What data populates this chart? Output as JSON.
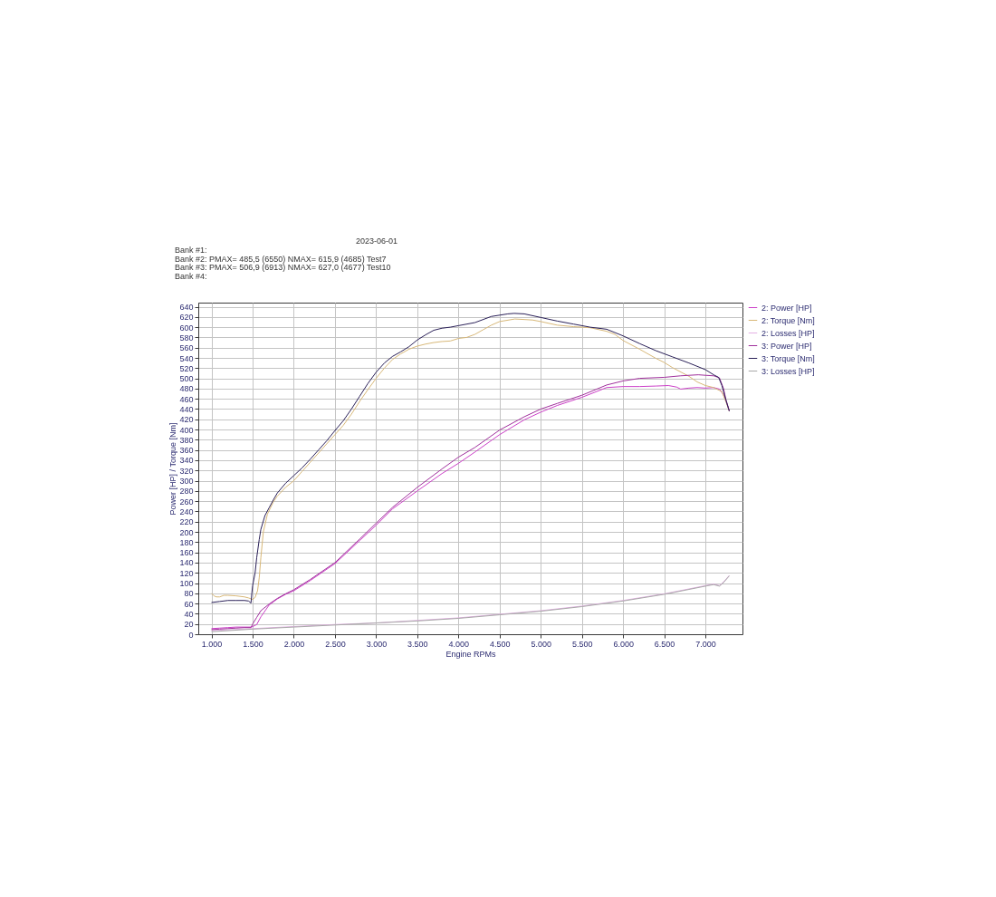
{
  "chart_data": {
    "type": "line",
    "title": "2023-06-01",
    "annotations": [
      "Bank #1:",
      "Bank #2: PMAX= 485,5 (6550)   NMAX= 615,9 (4685)   Test7",
      "Bank #3: PMAX= 506,9 (6913)   NMAX= 627,0 (4677)   Test10",
      "Bank #4:"
    ],
    "xlabel": "Engine RPMs",
    "ylabel": "Power [HP] / Torque [Nm]",
    "xlim": [
      840,
      7450
    ],
    "ylim": [
      0,
      648
    ],
    "xticks": [
      {
        "value": 1000,
        "label": "1.000"
      },
      {
        "value": 1500,
        "label": "1.500"
      },
      {
        "value": 2000,
        "label": "2.000"
      },
      {
        "value": 2500,
        "label": "2.500"
      },
      {
        "value": 3000,
        "label": "3.000"
      },
      {
        "value": 3500,
        "label": "3.500"
      },
      {
        "value": 4000,
        "label": "4.000"
      },
      {
        "value": 4500,
        "label": "4.500"
      },
      {
        "value": 5000,
        "label": "5.000"
      },
      {
        "value": 5500,
        "label": "5.500"
      },
      {
        "value": 6000,
        "label": "6.000"
      },
      {
        "value": 6500,
        "label": "6.500"
      },
      {
        "value": 7000,
        "label": "7.000"
      }
    ],
    "yticks": [
      0,
      20,
      40,
      60,
      80,
      100,
      120,
      140,
      160,
      180,
      200,
      220,
      240,
      260,
      280,
      300,
      320,
      340,
      360,
      380,
      400,
      420,
      440,
      460,
      480,
      500,
      520,
      540,
      560,
      580,
      600,
      620,
      640
    ],
    "grid": true,
    "legend": "right",
    "marker": "none",
    "line_style": "solid",
    "series": [
      {
        "name": "2: Power [HP]",
        "color": "#cc40c8",
        "x": [
          1000,
          1100,
          1200,
          1300,
          1400,
          1480,
          1500,
          1550,
          1600,
          1700,
          1800,
          1900,
          2000,
          2200,
          2500,
          2800,
          3000,
          3200,
          3500,
          3800,
          4000,
          4200,
          4500,
          4800,
          5000,
          5200,
          5500,
          5800,
          6000,
          6200,
          6400,
          6550,
          6650,
          6700,
          6800,
          6900,
          7000,
          7100,
          7170,
          7220,
          7260,
          7290
        ],
        "values": [
          11,
          12,
          13,
          14,
          14,
          14,
          15,
          19,
          34,
          57,
          69,
          78,
          85,
          105,
          138,
          183,
          213,
          245,
          280,
          314,
          334,
          356,
          390,
          419,
          434,
          447,
          463,
          482,
          484,
          484,
          485,
          486,
          483,
          479,
          481,
          482,
          481,
          482,
          479,
          468,
          451,
          436
        ]
      },
      {
        "name": "2: Torque [Nm]",
        "color": "#d8b878",
        "x": [
          1000,
          1030,
          1060,
          1100,
          1150,
          1200,
          1300,
          1400,
          1450,
          1500,
          1530,
          1560,
          1580,
          1600,
          1630,
          1680,
          1750,
          1800,
          1900,
          2000,
          2100,
          2200,
          2300,
          2400,
          2500,
          2600,
          2700,
          2800,
          2900,
          3000,
          3100,
          3200,
          3300,
          3400,
          3500,
          3600,
          3700,
          3800,
          3900,
          4000,
          4100,
          4200,
          4300,
          4400,
          4500,
          4685,
          4800,
          4900,
          5000,
          5200,
          5400,
          5600,
          5800,
          5900,
          6000,
          6200,
          6400,
          6500,
          6600,
          6800,
          6900,
          7000,
          7100,
          7200,
          7250,
          7290
        ],
        "values": [
          80,
          75,
          73,
          73,
          76,
          76,
          75,
          73,
          71,
          68,
          72,
          85,
          110,
          150,
          200,
          235,
          258,
          270,
          287,
          300,
          318,
          336,
          354,
          372,
          390,
          408,
          430,
          455,
          478,
          500,
          520,
          537,
          548,
          557,
          563,
          567,
          570,
          572,
          573,
          578,
          580,
          586,
          595,
          604,
          611,
          616,
          615,
          614,
          611,
          604,
          601,
          599,
          592,
          586,
          574,
          557,
          539,
          531,
          521,
          504,
          493,
          486,
          482,
          474,
          454,
          436
        ]
      },
      {
        "name": "2: Losses [HP]",
        "color": "#e4b0e4",
        "x": [
          1000,
          1500,
          2000,
          2500,
          3000,
          3500,
          4000,
          4500,
          5000,
          5500,
          6000,
          6500,
          7000,
          7100,
          7170,
          7220,
          7290
        ],
        "values": [
          7,
          11,
          15,
          19,
          22,
          27,
          32,
          39,
          46,
          55,
          66,
          79,
          95,
          98,
          95,
          102,
          115
        ]
      },
      {
        "name": "3: Power [HP]",
        "color": "#a0309c",
        "x": [
          1000,
          1100,
          1200,
          1300,
          1400,
          1480,
          1500,
          1550,
          1600,
          1700,
          1800,
          1900,
          2000,
          2200,
          2500,
          2800,
          3000,
          3200,
          3500,
          3800,
          4000,
          4200,
          4500,
          4800,
          5000,
          5200,
          5500,
          5800,
          6000,
          6200,
          6500,
          6700,
          6913,
          7000,
          7100,
          7170,
          7220,
          7250,
          7290
        ],
        "values": [
          9,
          10,
          11,
          12,
          13,
          13,
          20,
          33,
          46,
          59,
          70,
          79,
          87,
          107,
          140,
          186,
          217,
          248,
          287,
          323,
          346,
          365,
          399,
          425,
          440,
          451,
          467,
          487,
          495,
          500,
          502,
          505,
          507,
          506,
          505,
          501,
          480,
          458,
          437
        ]
      },
      {
        "name": "3: Torque [Nm]",
        "color": "#2a2058",
        "x": [
          1000,
          1100,
          1200,
          1300,
          1400,
          1450,
          1480,
          1490,
          1500,
          1530,
          1550,
          1580,
          1600,
          1650,
          1700,
          1750,
          1800,
          1900,
          2000,
          2100,
          2200,
          2300,
          2400,
          2500,
          2600,
          2700,
          2800,
          2900,
          3000,
          3100,
          3200,
          3300,
          3400,
          3500,
          3600,
          3700,
          3800,
          3900,
          4000,
          4200,
          4400,
          4600,
          4677,
          4800,
          5000,
          5200,
          5400,
          5600,
          5800,
          6000,
          6200,
          6400,
          6600,
          6800,
          7000,
          7100,
          7160,
          7200,
          7250,
          7290
        ],
        "values": [
          62,
          64,
          66,
          66,
          66,
          65,
          61,
          80,
          95,
          120,
          150,
          185,
          205,
          232,
          247,
          262,
          276,
          295,
          310,
          325,
          342,
          360,
          378,
          398,
          417,
          440,
          465,
          490,
          512,
          530,
          543,
          552,
          562,
          575,
          585,
          594,
          598,
          600,
          603,
          609,
          621,
          626,
          627,
          626,
          619,
          612,
          606,
          600,
          596,
          583,
          568,
          554,
          542,
          530,
          517,
          507,
          502,
          486,
          457,
          436
        ]
      },
      {
        "name": "3: Losses [HP]",
        "color": "#a8a8a8",
        "x": [
          1000,
          1500,
          2000,
          2500,
          3000,
          3500,
          4000,
          4500,
          5000,
          5500,
          6000,
          6500,
          7000,
          7100,
          7170,
          7220,
          7290
        ],
        "values": [
          5,
          10,
          14,
          18,
          22,
          26,
          31,
          38,
          45,
          54,
          65,
          78,
          94,
          97,
          94,
          101,
          114
        ]
      }
    ]
  }
}
